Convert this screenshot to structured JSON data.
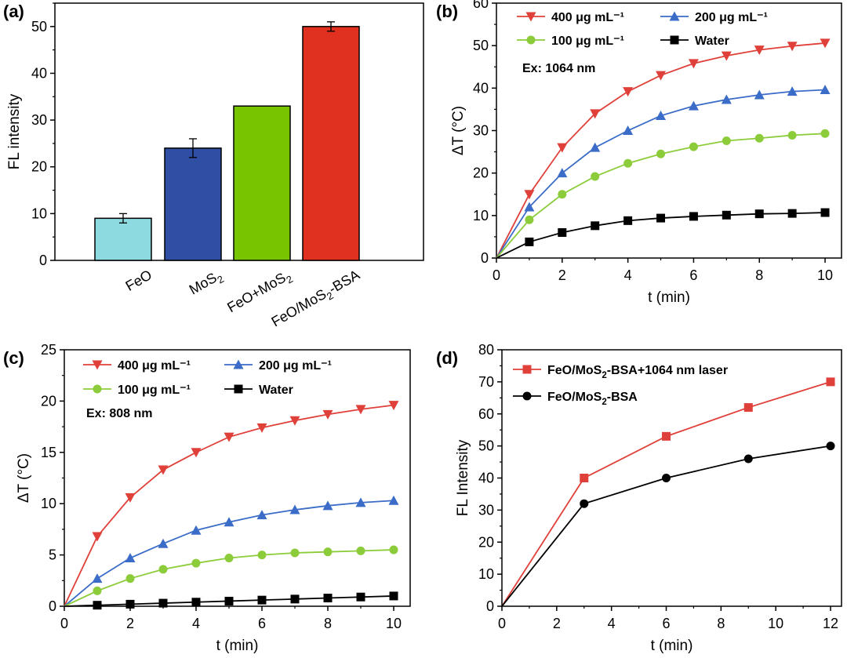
{
  "chart_data": [
    {
      "panel": "(a)",
      "type": "bar",
      "categories": [
        "FeO",
        "MoS2",
        "FeO+MoS2",
        "FeO/MoS2-BSA"
      ],
      "category_labels": [
        {
          "base": "FeO",
          "sub": "",
          "tail": ""
        },
        {
          "base": "MoS",
          "sub": "2",
          "tail": ""
        },
        {
          "base": "FeO+MoS",
          "sub": "2",
          "tail": ""
        },
        {
          "base": "FeO/MoS",
          "sub": "2",
          "tail": "-BSA"
        }
      ],
      "values": [
        9,
        24,
        33,
        50
      ],
      "errors": [
        1.0,
        2.0,
        0,
        1.0
      ],
      "colors": [
        "#8ddbe0",
        "#2e4fa3",
        "#78c400",
        "#e03020"
      ],
      "ylabel": "FL intensity",
      "ylim": [
        0,
        55
      ],
      "yticks": [
        0,
        10,
        20,
        30,
        40,
        50
      ]
    },
    {
      "panel": "(b)",
      "type": "line",
      "xlabel": "t (min)",
      "ylabel": "ΔT (°C)",
      "xlim": [
        0,
        10.5
      ],
      "ylim": [
        0,
        60
      ],
      "xticks": [
        0,
        2,
        4,
        6,
        8,
        10
      ],
      "yticks": [
        0,
        10,
        20,
        30,
        40,
        50,
        60
      ],
      "annotation": "Ex: 1064 nm",
      "x": [
        0,
        1,
        2,
        3,
        4,
        5,
        6,
        7,
        8,
        9,
        10
      ],
      "series": [
        {
          "name": "400 μg mL⁻¹",
          "color": "#e0403a",
          "marker": "triangle-down",
          "values": [
            0,
            15,
            26,
            34,
            39.2,
            43,
            45.8,
            47.6,
            49,
            49.9,
            50.6
          ]
        },
        {
          "name": "200 μg mL⁻¹",
          "color": "#3a6cc8",
          "marker": "triangle-up",
          "values": [
            0,
            12,
            20,
            26,
            30,
            33.5,
            35.8,
            37.3,
            38.4,
            39.2,
            39.6
          ]
        },
        {
          "name": "100 μg mL⁻¹",
          "color": "#8ccc3a",
          "marker": "circle",
          "values": [
            0,
            9,
            15,
            19.2,
            22.3,
            24.5,
            26.2,
            27.6,
            28.2,
            28.9,
            29.3
          ]
        },
        {
          "name": "Water",
          "color": "#000000",
          "marker": "square",
          "values": [
            0,
            3.8,
            6,
            7.6,
            8.8,
            9.4,
            9.8,
            10.1,
            10.4,
            10.5,
            10.7
          ]
        }
      ]
    },
    {
      "panel": "(c)",
      "type": "line",
      "xlabel": "t (min)",
      "ylabel": "ΔT (°C)",
      "xlim": [
        0,
        10.5
      ],
      "ylim": [
        0,
        25
      ],
      "xticks": [
        0,
        2,
        4,
        6,
        8,
        10
      ],
      "yticks": [
        0,
        5,
        10,
        15,
        20,
        25
      ],
      "annotation": "Ex: 808 nm",
      "x": [
        0,
        1,
        2,
        3,
        4,
        5,
        6,
        7,
        8,
        9,
        10
      ],
      "series": [
        {
          "name": "400 μg mL⁻¹",
          "color": "#e0403a",
          "marker": "triangle-down",
          "values": [
            0,
            6.8,
            10.6,
            13.3,
            15,
            16.5,
            17.4,
            18.1,
            18.7,
            19.2,
            19.6
          ]
        },
        {
          "name": "200 μg mL⁻¹",
          "color": "#3a6cc8",
          "marker": "triangle-up",
          "values": [
            0,
            2.7,
            4.7,
            6.1,
            7.4,
            8.2,
            8.9,
            9.4,
            9.8,
            10.1,
            10.3
          ]
        },
        {
          "name": "100 μg mL⁻¹",
          "color": "#8ccc3a",
          "marker": "circle",
          "values": [
            0,
            1.5,
            2.7,
            3.6,
            4.2,
            4.7,
            5.0,
            5.2,
            5.3,
            5.4,
            5.5
          ]
        },
        {
          "name": "Water",
          "color": "#000000",
          "marker": "square",
          "values": [
            0,
            0.1,
            0.2,
            0.3,
            0.4,
            0.5,
            0.6,
            0.7,
            0.8,
            0.9,
            1.0
          ]
        }
      ]
    },
    {
      "panel": "(d)",
      "type": "line",
      "xlabel": "t (min)",
      "ylabel": "FL Intensity",
      "xlim": [
        0,
        12.4
      ],
      "ylim": [
        0,
        80
      ],
      "xticks": [
        0,
        2,
        4,
        6,
        8,
        10,
        12
      ],
      "yticks": [
        0,
        10,
        20,
        30,
        40,
        50,
        60,
        70,
        80
      ],
      "x": [
        0,
        3,
        6,
        9,
        12
      ],
      "series": [
        {
          "name": "FeO/MoS2-BSA+1064 nm laser",
          "label_base": "FeO/MoS",
          "label_sub": "2",
          "label_tail": "-BSA+1064 nm laser",
          "color": "#e0403a",
          "marker": "square",
          "values": [
            0,
            40,
            53,
            62,
            70
          ]
        },
        {
          "name": "FeO/MoS2-BSA",
          "label_base": "FeO/MoS",
          "label_sub": "2",
          "label_tail": "-BSA",
          "color": "#000000",
          "marker": "circle",
          "values": [
            0,
            32,
            40,
            46,
            50
          ]
        }
      ]
    }
  ]
}
